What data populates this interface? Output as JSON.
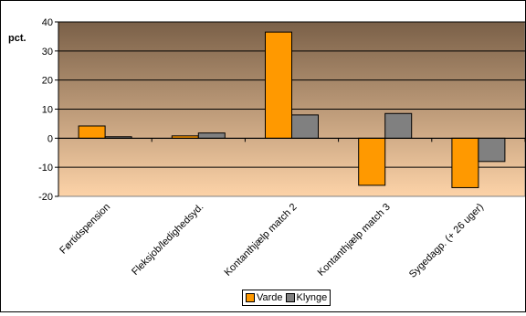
{
  "chart_data": {
    "type": "bar",
    "title": "",
    "ylabel": "pct.",
    "xlabel": "",
    "ylim": [
      -20,
      40
    ],
    "yticks": [
      -20,
      -10,
      0,
      10,
      20,
      30,
      40
    ],
    "grid": true,
    "legend_position": "bottom",
    "categories": [
      "Førtidspension",
      "Fleksjob/ledighedsyd.",
      "Kontanthjælp match 2",
      "Kontanthjælp match 3",
      "Sygedagp. (+ 26 uger)"
    ],
    "series": [
      {
        "name": "Varde",
        "color": "#ff9900",
        "values": [
          4.2,
          0.8,
          36.5,
          -16.2,
          -17.0
        ]
      },
      {
        "name": "Klynge",
        "color": "#808080",
        "values": [
          0.5,
          1.8,
          8.0,
          8.5,
          -8.0
        ]
      }
    ],
    "plot_background": {
      "top_color": "#7a6048",
      "bottom_color": "#fdd3a8"
    }
  }
}
